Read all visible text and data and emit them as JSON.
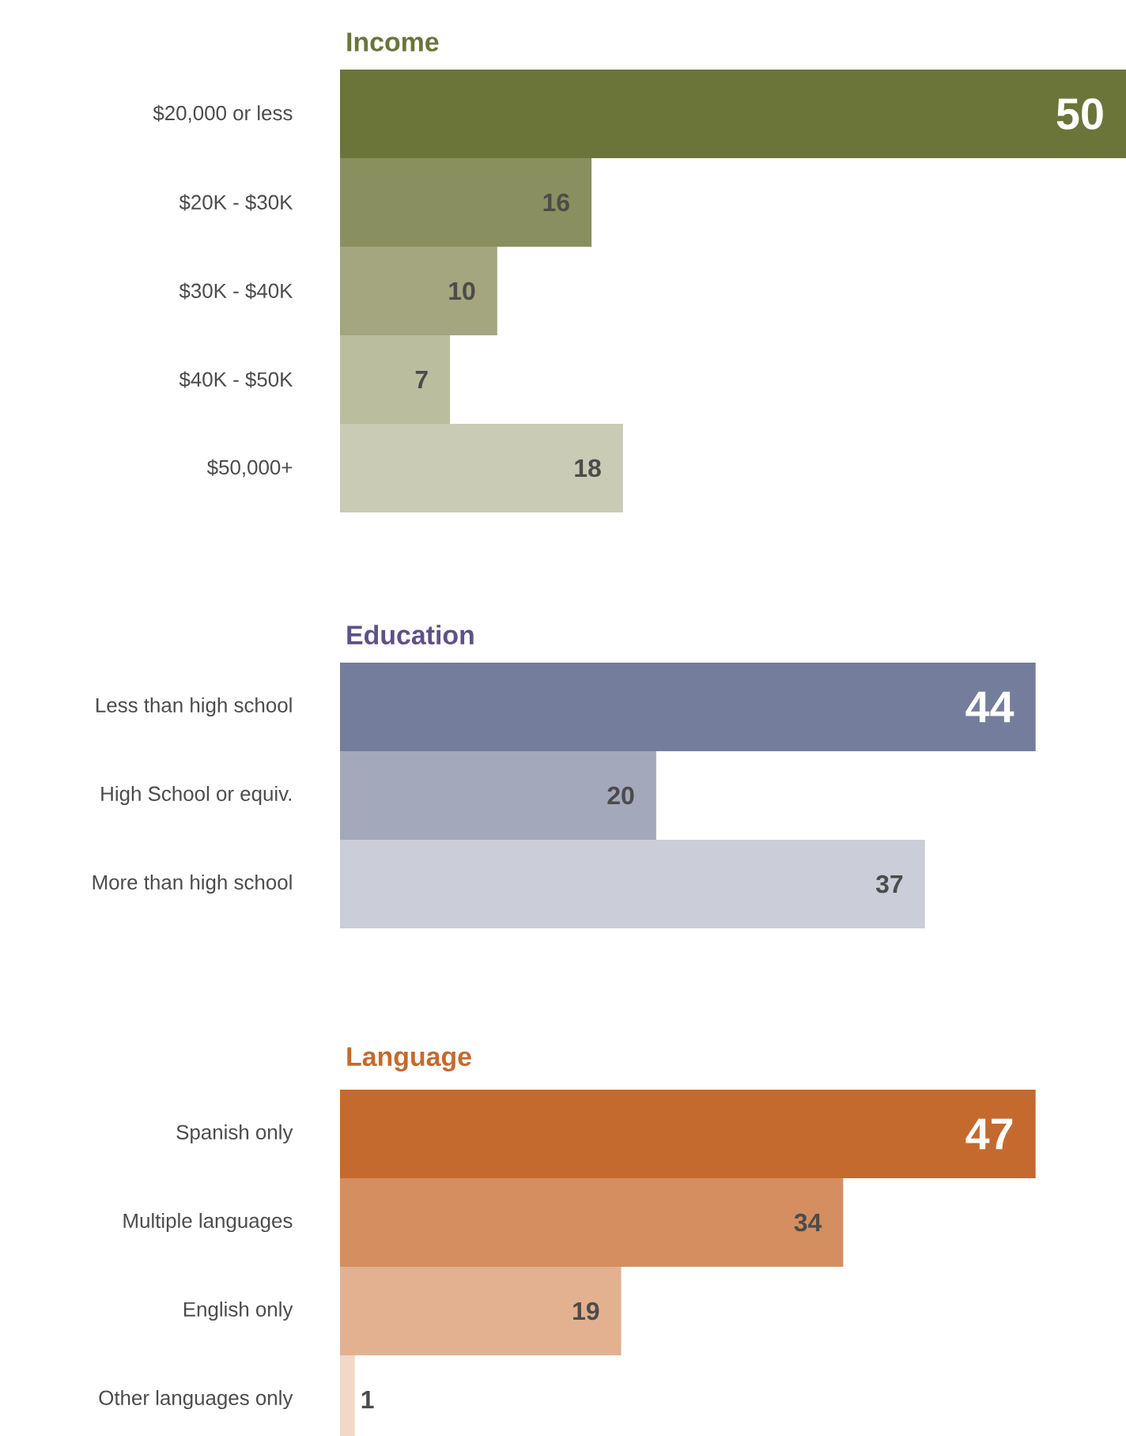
{
  "chart_data": [
    {
      "type": "bar",
      "orientation": "horizontal",
      "title": "Income",
      "categories": [
        "$20,000 or less",
        "$20K - $30K",
        "$30K - $40K",
        "$40K - $50K",
        "$50,000+"
      ],
      "values": [
        50,
        16,
        10,
        7,
        18
      ],
      "colors": [
        "#6b753a",
        "#8a8f5f",
        "#a3a67e",
        "#bbbd9f",
        "#cacbb5"
      ],
      "xlim": [
        0,
        50
      ],
      "data_labels": true,
      "tick_labels": "y"
    },
    {
      "type": "bar",
      "orientation": "horizontal",
      "title": "Education",
      "categories": [
        "Less than high school",
        "High School or equiv.",
        "More than high school"
      ],
      "values": [
        44,
        20,
        37
      ],
      "colors": [
        "#747d9b",
        "#a3a8bb",
        "#cbcdd9"
      ],
      "data_labels": true,
      "tick_labels": "y"
    },
    {
      "type": "bar",
      "orientation": "horizontal",
      "title": "Language",
      "categories": [
        "Spanish only",
        "Multiple languages",
        "English only",
        "Other languages only"
      ],
      "values": [
        47,
        34,
        19,
        1
      ],
      "colors": [
        "#c46a2e",
        "#d48e60",
        "#e3b18f",
        "#f2d8c6"
      ],
      "data_labels": true,
      "tick_labels": "y"
    }
  ]
}
